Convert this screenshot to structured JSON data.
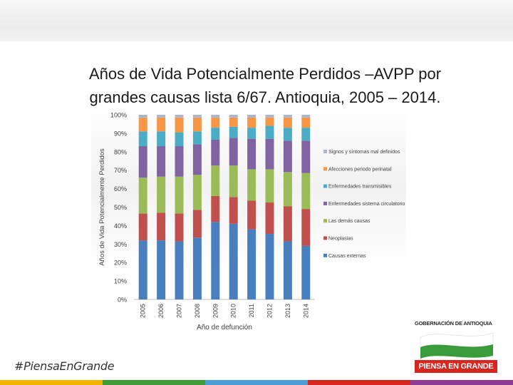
{
  "title": {
    "line1": "Años de Vida Potencialmente Perdidos –AVPP por",
    "line2": "grandes causas lista 6/67. Antioquia, 2005 – 2014."
  },
  "chart_data": {
    "type": "bar",
    "stacked": "percent",
    "ylabel": "Años de Vida Potencialmente Perdidos",
    "xlabel": "Año de defunción",
    "ylim": [
      0,
      100
    ],
    "y_ticks": [
      "0%",
      "10%",
      "20%",
      "30%",
      "40%",
      "50%",
      "60%",
      "70%",
      "80%",
      "90%",
      "100%"
    ],
    "categories": [
      "2005",
      "2006",
      "2007",
      "2008",
      "2009",
      "2010",
      "2011",
      "2012",
      "2013",
      "2014"
    ],
    "legend_position": "right",
    "series": [
      {
        "name": "Causas externas",
        "color": "#4a7fbf",
        "values": [
          32,
          32,
          31.5,
          33.5,
          42,
          41,
          38,
          35.5,
          31.5,
          29
        ]
      },
      {
        "name": "Neoplasias",
        "color": "#c0504d",
        "values": [
          14.5,
          15,
          15,
          15,
          14,
          14.5,
          15.5,
          17,
          19,
          20
        ]
      },
      {
        "name": "Las demás causas",
        "color": "#9bbb59",
        "values": [
          19.5,
          19.5,
          20,
          19,
          16.5,
          17,
          17,
          18,
          18.5,
          19.5
        ]
      },
      {
        "name": "Enfermedades sistema circulatorio",
        "color": "#7f64a1",
        "values": [
          17,
          16.5,
          16.5,
          16.5,
          14,
          15,
          16.5,
          16.5,
          17,
          17.5
        ]
      },
      {
        "name": "Enfermedades transmisibles",
        "color": "#4bacc6",
        "values": [
          8,
          8,
          7.5,
          7,
          6.5,
          6,
          6,
          7,
          7,
          7
        ]
      },
      {
        "name": "Afecciones periodo perinatal",
        "color": "#f79646",
        "values": [
          7.5,
          7.5,
          8,
          7.5,
          5.5,
          5,
          5.5,
          4.5,
          5.5,
          5.5
        ]
      },
      {
        "name": "Signos y síntomas mal definidos",
        "color": "#a9b7cc",
        "values": [
          1.5,
          1.5,
          1.5,
          1.5,
          1.5,
          1.5,
          1.5,
          1.5,
          1.5,
          1.5
        ]
      }
    ]
  },
  "footer": {
    "hashtag": "#PiensaEnGrande",
    "colors": [
      "#f2b600",
      "#3f9b35",
      "#4e9fd8",
      "#d7261e",
      "#8e3c93"
    ]
  },
  "logo": {
    "org": "GOBERNACIÓN DE ANTIOQUIA",
    "slogan": "PIENSA EN GRANDE",
    "flag_colors": [
      "#ffffff",
      "#3a9b3a"
    ]
  }
}
